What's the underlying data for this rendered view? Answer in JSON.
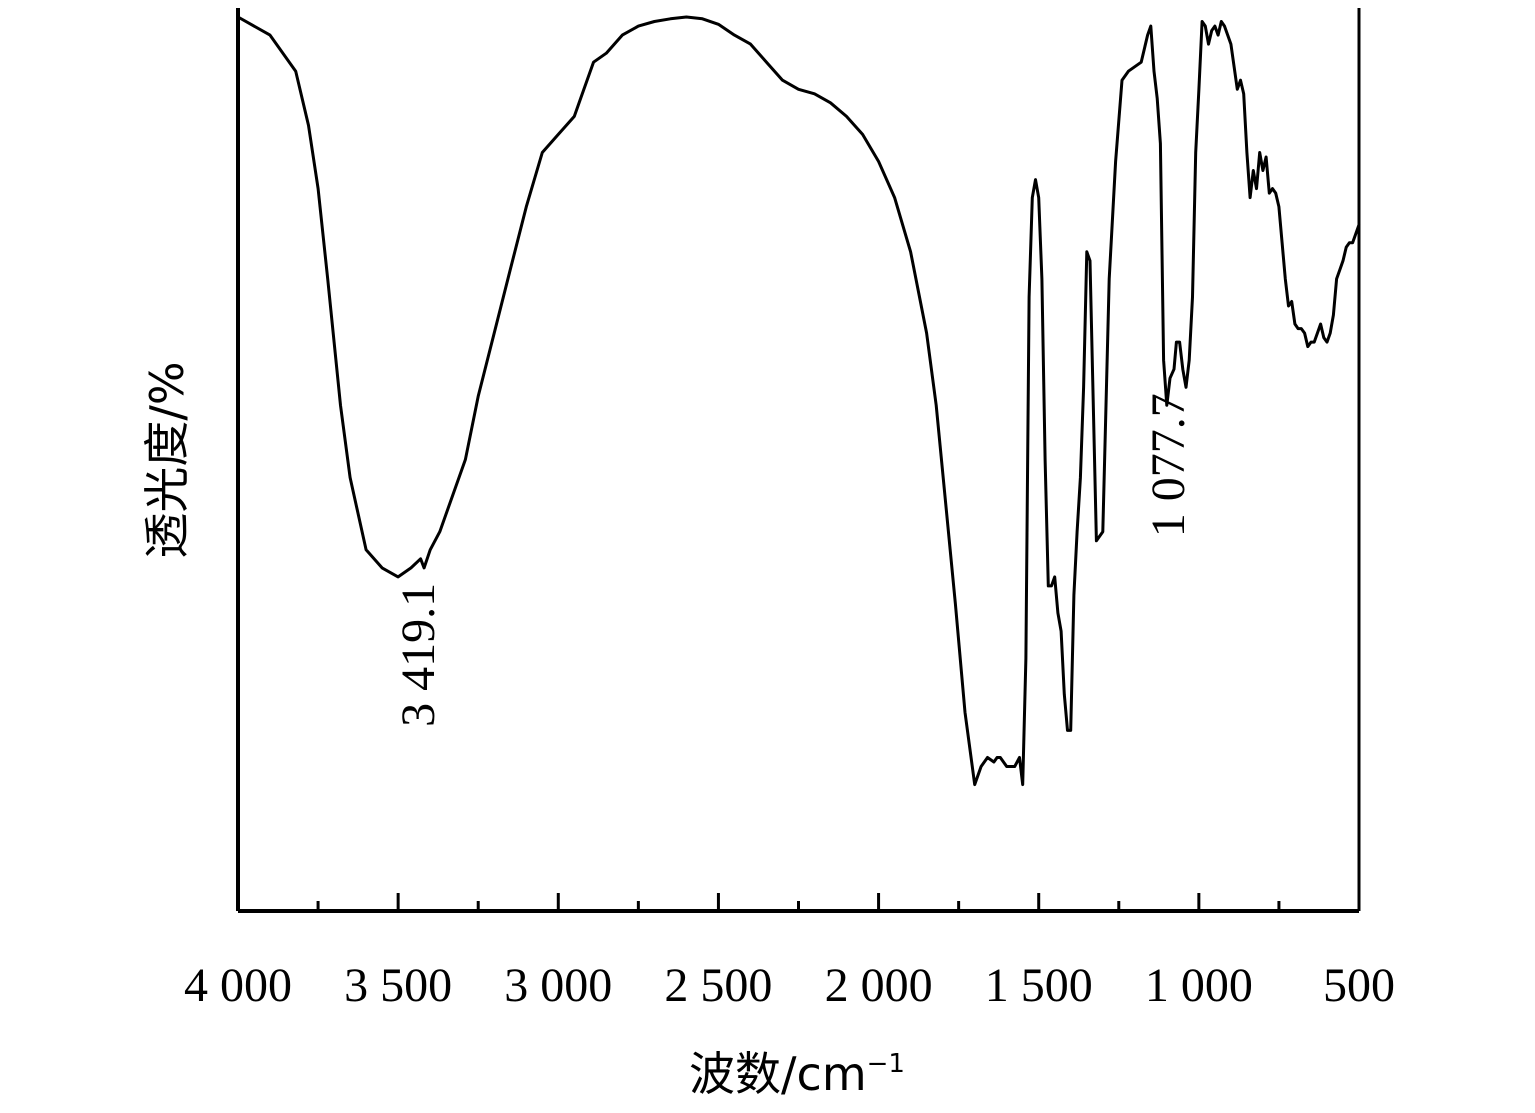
{
  "chart_data": {
    "type": "line",
    "xlabel": "波数/cm",
    "xlabel_sup": "−1",
    "ylabel": "透光度/%",
    "x_axis_reversed": true,
    "xlim": [
      4000,
      500
    ],
    "ylim": [
      0,
      100
    ],
    "x_ticks": [
      4000,
      3500,
      3000,
      2500,
      2000,
      1500,
      1000,
      500
    ],
    "x_tick_labels": [
      "4 000",
      "3 500",
      "3 000",
      "2 500",
      "2 000",
      "1 500",
      "1 000",
      "500"
    ],
    "minor_ticks": [
      3750,
      3250,
      2750,
      2250,
      1750,
      1250,
      750
    ],
    "grid": false,
    "annotations": [
      {
        "text": "3 419.1",
        "x": 3419.1,
        "y": 38
      },
      {
        "text": "1 077.7",
        "x": 1077.7,
        "y": 59
      }
    ],
    "series": [
      {
        "x": [
          4000,
          3900,
          3820,
          3780,
          3750,
          3720,
          3680,
          3650,
          3600,
          3550,
          3500,
          3460,
          3430,
          3419,
          3400,
          3370,
          3330,
          3290,
          3250,
          3200,
          3150,
          3100,
          3050,
          3000,
          2950,
          2930,
          2920,
          2890,
          2850,
          2800,
          2750,
          2700,
          2650,
          2600,
          2550,
          2500,
          2450,
          2400,
          2350,
          2300,
          2250,
          2200,
          2150,
          2100,
          2050,
          2000,
          1950,
          1900,
          1850,
          1820,
          1790,
          1760,
          1730,
          1700,
          1680,
          1660,
          1640,
          1630,
          1620,
          1600,
          1575,
          1560,
          1550,
          1540,
          1530,
          1520,
          1510,
          1500,
          1490,
          1480,
          1470,
          1460,
          1450,
          1440,
          1430,
          1420,
          1410,
          1400,
          1390,
          1380,
          1370,
          1360,
          1350,
          1340,
          1320,
          1300,
          1280,
          1260,
          1240,
          1220,
          1200,
          1180,
          1160,
          1150,
          1140,
          1130,
          1120,
          1110,
          1100,
          1090,
          1077.7,
          1070,
          1060,
          1050,
          1040,
          1030,
          1020,
          1010,
          1000,
          990,
          980,
          970,
          960,
          950,
          940,
          930,
          920,
          910,
          900,
          890,
          880,
          870,
          860,
          850,
          840,
          830,
          820,
          810,
          800,
          790,
          780,
          770,
          760,
          750,
          740,
          730,
          720,
          710,
          700,
          690,
          680,
          670,
          660,
          650,
          640,
          630,
          620,
          610,
          600,
          590,
          580,
          570,
          560,
          550,
          540,
          530,
          520,
          510,
          500
        ],
        "y": [
          99,
          97,
          93,
          87,
          80,
          70,
          56,
          48,
          40,
          38,
          37,
          38,
          39,
          38,
          40,
          42,
          46,
          50,
          57,
          64,
          71,
          78,
          84,
          86,
          88,
          90,
          91,
          94,
          95,
          97,
          98,
          98.5,
          98.8,
          99,
          98.8,
          98.2,
          97,
          96,
          94,
          92,
          91,
          90.5,
          89.5,
          88,
          86,
          83,
          79,
          73,
          64,
          56,
          45,
          34,
          22,
          14,
          16,
          17,
          16.5,
          17,
          17,
          16,
          16,
          17,
          14,
          28,
          68,
          79,
          81,
          79,
          70,
          50,
          36,
          36,
          37,
          33,
          31,
          24,
          20,
          20,
          35,
          42,
          48,
          58,
          73,
          72,
          41,
          42,
          70,
          83,
          92,
          93,
          93.5,
          94,
          97,
          98,
          93,
          90,
          85,
          61,
          56,
          59,
          60,
          63,
          63,
          60,
          58,
          61,
          68,
          84,
          91,
          98.5,
          98,
          96,
          97.5,
          98,
          97,
          98.5,
          98,
          97,
          96,
          93.5,
          91,
          92,
          90.5,
          84,
          79,
          82,
          80,
          84,
          82,
          83.5,
          79.5,
          80,
          79.5,
          78,
          74,
          70,
          67,
          67.5,
          65,
          64.5,
          64.5,
          64,
          62.5,
          63,
          63,
          64,
          65,
          63.5,
          63,
          64,
          66,
          70,
          71,
          72,
          73.5,
          74,
          74,
          75,
          76
        ]
      }
    ]
  }
}
